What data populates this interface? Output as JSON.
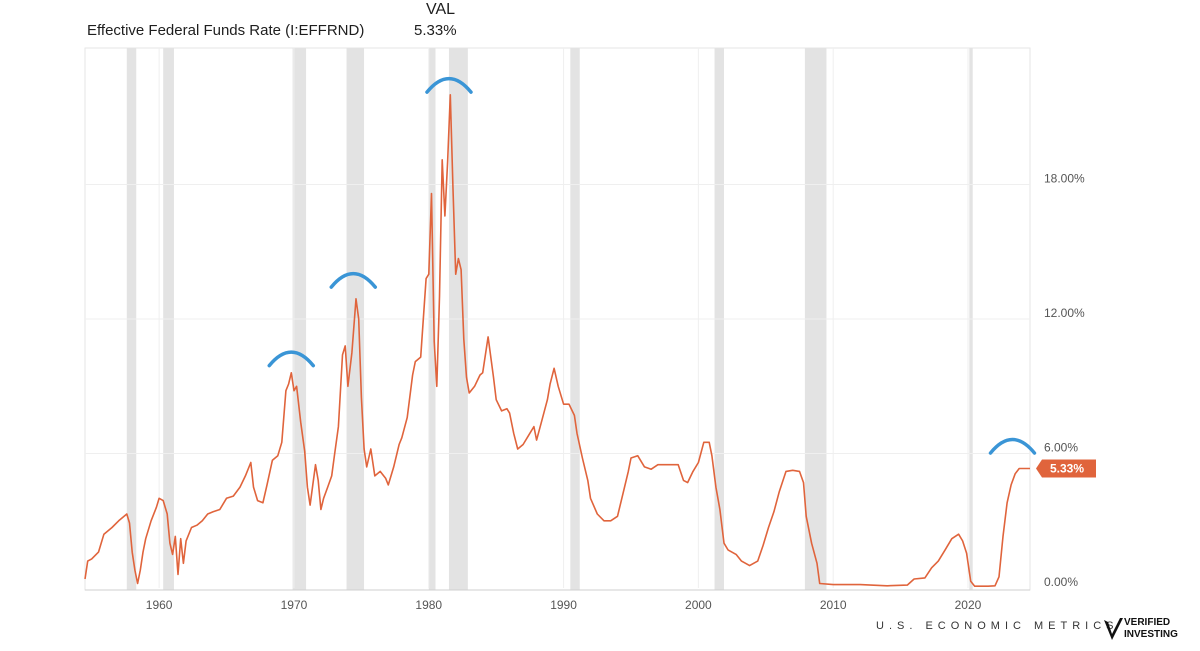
{
  "header": {
    "series_name": "Effective Federal Funds Rate (I:EFFRND)",
    "val_label": "VAL",
    "val_value": "5.33%"
  },
  "chart_data": {
    "type": "line",
    "title": "Effective Federal Funds Rate (I:EFFRND)",
    "xlabel": "",
    "ylabel": "",
    "xlim": [
      1954.5,
      2024.6
    ],
    "ylim": [
      0,
      24
    ],
    "y_ticks": [
      {
        "value": 0,
        "label": "0.00%"
      },
      {
        "value": 6,
        "label": "6.00%"
      },
      {
        "value": 12,
        "label": "12.00%"
      },
      {
        "value": 18,
        "label": "18.00%"
      }
    ],
    "x_ticks": [
      {
        "value": 1960,
        "label": "1960"
      },
      {
        "value": 1970,
        "label": "1970"
      },
      {
        "value": 1980,
        "label": "1980"
      },
      {
        "value": 1990,
        "label": "1990"
      },
      {
        "value": 2000,
        "label": "2000"
      },
      {
        "value": 2010,
        "label": "2010"
      },
      {
        "value": 2020,
        "label": "2020"
      }
    ],
    "last_value_label": "5.33%",
    "last_value": 5.33,
    "line_color": "#e0643c",
    "recession_color": "#e3e3e3",
    "annotation_color": "#3a95d6",
    "recessions": [
      [
        1957.6,
        1958.3
      ],
      [
        1960.3,
        1961.1
      ],
      [
        1969.9,
        1970.9
      ],
      [
        1973.9,
        1975.2
      ],
      [
        1980.0,
        1980.5
      ],
      [
        1981.5,
        1982.9
      ],
      [
        1990.5,
        1991.2
      ],
      [
        2001.2,
        2001.9
      ],
      [
        2007.9,
        2009.5
      ],
      [
        2020.1,
        2020.35
      ]
    ],
    "annotated_peaks": [
      {
        "x": 1969.8,
        "y": 10.5
      },
      {
        "x": 1974.4,
        "y": 14.0
      },
      {
        "x": 1981.5,
        "y": 22.7
      },
      {
        "x": 2023.3,
        "y": 6.6
      }
    ],
    "series": [
      {
        "name": "Effective Federal Funds Rate",
        "points": [
          [
            1954.5,
            0.4
          ],
          [
            1954.7,
            1.2
          ],
          [
            1955.0,
            1.3
          ],
          [
            1955.5,
            1.6
          ],
          [
            1955.9,
            2.4
          ],
          [
            1956.5,
            2.7
          ],
          [
            1957.0,
            3.0
          ],
          [
            1957.6,
            3.3
          ],
          [
            1957.8,
            2.9
          ],
          [
            1958.0,
            1.6
          ],
          [
            1958.2,
            0.8
          ],
          [
            1958.4,
            0.2
          ],
          [
            1958.6,
            0.8
          ],
          [
            1958.8,
            1.6
          ],
          [
            1959.0,
            2.2
          ],
          [
            1959.4,
            3.0
          ],
          [
            1959.8,
            3.6
          ],
          [
            1960.0,
            4.0
          ],
          [
            1960.3,
            3.9
          ],
          [
            1960.6,
            3.3
          ],
          [
            1960.8,
            2.0
          ],
          [
            1961.0,
            1.5
          ],
          [
            1961.2,
            2.3
          ],
          [
            1961.4,
            0.6
          ],
          [
            1961.6,
            2.2
          ],
          [
            1961.8,
            1.1
          ],
          [
            1962.0,
            2.1
          ],
          [
            1962.4,
            2.7
          ],
          [
            1962.8,
            2.8
          ],
          [
            1963.2,
            3.0
          ],
          [
            1963.6,
            3.3
          ],
          [
            1964.0,
            3.4
          ],
          [
            1964.5,
            3.5
          ],
          [
            1965.0,
            4.0
          ],
          [
            1965.5,
            4.1
          ],
          [
            1966.0,
            4.5
          ],
          [
            1966.4,
            5.0
          ],
          [
            1966.8,
            5.6
          ],
          [
            1967.0,
            4.5
          ],
          [
            1967.3,
            3.9
          ],
          [
            1967.7,
            3.8
          ],
          [
            1968.0,
            4.6
          ],
          [
            1968.4,
            5.7
          ],
          [
            1968.8,
            5.9
          ],
          [
            1969.1,
            6.5
          ],
          [
            1969.4,
            8.8
          ],
          [
            1969.6,
            9.1
          ],
          [
            1969.8,
            9.6
          ],
          [
            1970.0,
            8.8
          ],
          [
            1970.2,
            9.0
          ],
          [
            1970.5,
            7.4
          ],
          [
            1970.8,
            6.1
          ],
          [
            1971.0,
            4.5
          ],
          [
            1971.2,
            3.7
          ],
          [
            1971.4,
            4.6
          ],
          [
            1971.6,
            5.5
          ],
          [
            1971.8,
            4.8
          ],
          [
            1972.0,
            3.5
          ],
          [
            1972.2,
            4.0
          ],
          [
            1972.5,
            4.5
          ],
          [
            1972.8,
            5.0
          ],
          [
            1973.0,
            5.9
          ],
          [
            1973.3,
            7.2
          ],
          [
            1973.6,
            10.4
          ],
          [
            1973.8,
            10.8
          ],
          [
            1974.0,
            9.0
          ],
          [
            1974.3,
            10.5
          ],
          [
            1974.6,
            12.9
          ],
          [
            1974.8,
            12.0
          ],
          [
            1975.0,
            8.5
          ],
          [
            1975.2,
            6.2
          ],
          [
            1975.4,
            5.4
          ],
          [
            1975.7,
            6.2
          ],
          [
            1976.0,
            5.0
          ],
          [
            1976.4,
            5.2
          ],
          [
            1976.8,
            4.9
          ],
          [
            1977.0,
            4.6
          ],
          [
            1977.4,
            5.4
          ],
          [
            1977.8,
            6.4
          ],
          [
            1978.0,
            6.7
          ],
          [
            1978.4,
            7.6
          ],
          [
            1978.8,
            9.5
          ],
          [
            1979.0,
            10.1
          ],
          [
            1979.4,
            10.3
          ],
          [
            1979.8,
            13.8
          ],
          [
            1980.0,
            14.0
          ],
          [
            1980.2,
            17.6
          ],
          [
            1980.4,
            11.0
          ],
          [
            1980.6,
            9.0
          ],
          [
            1980.8,
            13.0
          ],
          [
            1981.0,
            19.1
          ],
          [
            1981.2,
            16.6
          ],
          [
            1981.4,
            19.0
          ],
          [
            1981.6,
            22.0
          ],
          [
            1981.8,
            17.8
          ],
          [
            1982.0,
            14.0
          ],
          [
            1982.2,
            14.7
          ],
          [
            1982.4,
            14.2
          ],
          [
            1982.6,
            11.1
          ],
          [
            1982.8,
            9.4
          ],
          [
            1983.0,
            8.7
          ],
          [
            1983.4,
            9.0
          ],
          [
            1983.8,
            9.5
          ],
          [
            1984.0,
            9.6
          ],
          [
            1984.4,
            11.2
          ],
          [
            1984.8,
            9.4
          ],
          [
            1985.0,
            8.4
          ],
          [
            1985.4,
            7.9
          ],
          [
            1985.8,
            8.0
          ],
          [
            1986.0,
            7.8
          ],
          [
            1986.3,
            6.9
          ],
          [
            1986.6,
            6.2
          ],
          [
            1987.0,
            6.4
          ],
          [
            1987.4,
            6.8
          ],
          [
            1987.8,
            7.2
          ],
          [
            1988.0,
            6.6
          ],
          [
            1988.4,
            7.5
          ],
          [
            1988.8,
            8.4
          ],
          [
            1989.0,
            9.1
          ],
          [
            1989.3,
            9.8
          ],
          [
            1989.6,
            9.0
          ],
          [
            1990.0,
            8.2
          ],
          [
            1990.4,
            8.2
          ],
          [
            1990.8,
            7.7
          ],
          [
            1991.0,
            6.9
          ],
          [
            1991.4,
            5.8
          ],
          [
            1991.8,
            4.8
          ],
          [
            1992.0,
            4.0
          ],
          [
            1992.5,
            3.3
          ],
          [
            1993.0,
            3.0
          ],
          [
            1993.5,
            3.0
          ],
          [
            1994.0,
            3.2
          ],
          [
            1994.4,
            4.2
          ],
          [
            1994.8,
            5.2
          ],
          [
            1995.0,
            5.8
          ],
          [
            1995.5,
            5.9
          ],
          [
            1996.0,
            5.4
          ],
          [
            1996.5,
            5.3
          ],
          [
            1997.0,
            5.5
          ],
          [
            1997.5,
            5.5
          ],
          [
            1998.0,
            5.5
          ],
          [
            1998.5,
            5.5
          ],
          [
            1998.9,
            4.8
          ],
          [
            1999.2,
            4.7
          ],
          [
            1999.6,
            5.2
          ],
          [
            2000.0,
            5.6
          ],
          [
            2000.4,
            6.5
          ],
          [
            2000.8,
            6.5
          ],
          [
            2001.0,
            5.9
          ],
          [
            2001.3,
            4.5
          ],
          [
            2001.6,
            3.5
          ],
          [
            2001.9,
            2.0
          ],
          [
            2002.2,
            1.7
          ],
          [
            2002.8,
            1.5
          ],
          [
            2003.2,
            1.2
          ],
          [
            2003.8,
            1.0
          ],
          [
            2004.4,
            1.2
          ],
          [
            2004.8,
            1.9
          ],
          [
            2005.2,
            2.7
          ],
          [
            2005.6,
            3.4
          ],
          [
            2006.0,
            4.3
          ],
          [
            2006.5,
            5.2
          ],
          [
            2007.0,
            5.25
          ],
          [
            2007.5,
            5.2
          ],
          [
            2007.8,
            4.7
          ],
          [
            2008.0,
            3.2
          ],
          [
            2008.4,
            2.0
          ],
          [
            2008.8,
            1.1
          ],
          [
            2009.0,
            0.2
          ],
          [
            2010.0,
            0.15
          ],
          [
            2012.0,
            0.15
          ],
          [
            2014.0,
            0.1
          ],
          [
            2015.5,
            0.13
          ],
          [
            2016.0,
            0.4
          ],
          [
            2016.8,
            0.45
          ],
          [
            2017.3,
            0.9
          ],
          [
            2017.8,
            1.2
          ],
          [
            2018.3,
            1.7
          ],
          [
            2018.8,
            2.2
          ],
          [
            2019.3,
            2.4
          ],
          [
            2019.6,
            2.1
          ],
          [
            2019.9,
            1.55
          ],
          [
            2020.2,
            0.3
          ],
          [
            2020.5,
            0.08
          ],
          [
            2021.5,
            0.08
          ],
          [
            2022.0,
            0.1
          ],
          [
            2022.3,
            0.5
          ],
          [
            2022.6,
            2.3
          ],
          [
            2022.9,
            3.8
          ],
          [
            2023.2,
            4.6
          ],
          [
            2023.5,
            5.1
          ],
          [
            2023.8,
            5.33
          ],
          [
            2024.6,
            5.33
          ]
        ]
      }
    ]
  },
  "footer": {
    "brand_text": "U.S. ECONOMIC METRICS",
    "logo_line1": "VERIFIED",
    "logo_line2": "INVESTING"
  }
}
